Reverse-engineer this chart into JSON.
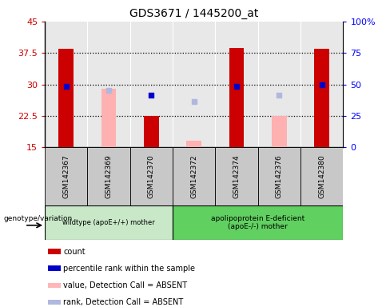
{
  "title": "GDS3671 / 1445200_at",
  "samples": [
    "GSM142367",
    "GSM142369",
    "GSM142370",
    "GSM142372",
    "GSM142374",
    "GSM142376",
    "GSM142380"
  ],
  "ylim_left": [
    15,
    45
  ],
  "ylim_right": [
    0,
    100
  ],
  "yticks_left": [
    15,
    22.5,
    30,
    37.5,
    45
  ],
  "yticks_right": [
    0,
    25,
    50,
    75,
    100
  ],
  "ytick_labels_left": [
    "15",
    "22.5",
    "30",
    "37.5",
    "45"
  ],
  "ytick_labels_right": [
    "0",
    "25",
    "50",
    "75",
    "100%"
  ],
  "red_bars": [
    38.5,
    null,
    22.5,
    null,
    38.7,
    null,
    38.5
  ],
  "pink_bars": [
    null,
    29.0,
    null,
    16.5,
    null,
    22.5,
    null
  ],
  "bar_bottom": 15,
  "blue_squares_present": [
    true,
    false,
    true,
    false,
    true,
    false,
    true
  ],
  "blue_square_values": [
    29.5,
    null,
    27.5,
    null,
    29.5,
    null,
    30.0
  ],
  "light_blue_squares_present": [
    false,
    true,
    false,
    true,
    false,
    true,
    false
  ],
  "light_blue_square_values": [
    null,
    28.5,
    null,
    26.0,
    null,
    27.5,
    null
  ],
  "group1_label": "wildtype (apoE+/+) mother",
  "group2_label": "apolipoprotein E-deficient\n(apoE-/-) mother",
  "group1_count": 3,
  "group2_count": 4,
  "legend_items": [
    {
      "color": "#cc0000",
      "label": "count"
    },
    {
      "color": "#0000cc",
      "label": "percentile rank within the sample"
    },
    {
      "color": "#ffb6b6",
      "label": "value, Detection Call = ABSENT"
    },
    {
      "color": "#b0b8e0",
      "label": "rank, Detection Call = ABSENT"
    }
  ],
  "bar_width": 0.35,
  "plot_bg_color": "#e8e8e8",
  "sample_label_bg_color": "#c8c8c8",
  "group_bg_color1": "#c8e8c8",
  "group_bg_color2": "#60d060",
  "genotype_label": "genotype/variation",
  "red_color": "#cc0000",
  "pink_color": "#ffb0b0",
  "blue_color": "#0000cc",
  "light_blue_color": "#b0b8e0",
  "dotted_line_color": "#000000",
  "grid_yticks": [
    22.5,
    30,
    37.5
  ]
}
